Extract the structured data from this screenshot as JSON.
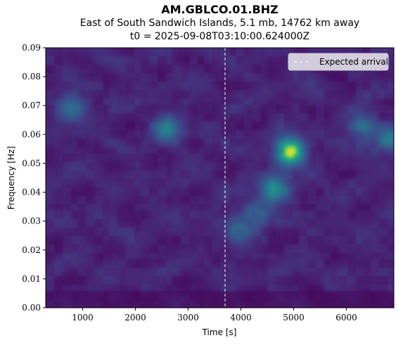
{
  "chart_data": {
    "type": "heatmap",
    "title": "AM.GBLCO.01.BHZ",
    "subtitle": "East of South Sandwich Islands, 5.1 mb, 14762 km away",
    "subtitle2": "t0 = 2025-09-08T03:10:00.624000Z",
    "xlabel": "Time [s]",
    "ylabel": "Frequency [Hz]",
    "xlim": [
      300,
      6900
    ],
    "ylim": [
      0.0,
      0.09
    ],
    "x_ticks": [
      1000,
      2000,
      3000,
      4000,
      5000,
      6000
    ],
    "y_ticks": [
      0.0,
      0.01,
      0.02,
      0.03,
      0.04,
      0.05,
      0.06,
      0.07,
      0.08,
      0.09
    ],
    "x_tick_labels": [
      "1000",
      "2000",
      "3000",
      "4000",
      "5000",
      "6000"
    ],
    "y_tick_labels": [
      "0.00",
      "0.01",
      "0.02",
      "0.03",
      "0.04",
      "0.05",
      "0.06",
      "0.07",
      "0.08",
      "0.09"
    ],
    "colormap": "viridis",
    "expected_arrival": 3700,
    "legend": {
      "label": "Expected arrival",
      "location": "top-right"
    },
    "hotspots": [
      {
        "t": 4930,
        "f": 0.054,
        "intensity": 1.0
      },
      {
        "t": 4650,
        "f": 0.041,
        "intensity": 0.6
      },
      {
        "t": 2600,
        "f": 0.062,
        "intensity": 0.45
      },
      {
        "t": 800,
        "f": 0.069,
        "intensity": 0.4
      },
      {
        "t": 6300,
        "f": 0.063,
        "intensity": 0.4
      },
      {
        "t": 6800,
        "f": 0.058,
        "intensity": 0.4
      },
      {
        "t": 4300,
        "f": 0.033,
        "intensity": 0.35
      },
      {
        "t": 3950,
        "f": 0.027,
        "intensity": 0.3
      }
    ]
  }
}
